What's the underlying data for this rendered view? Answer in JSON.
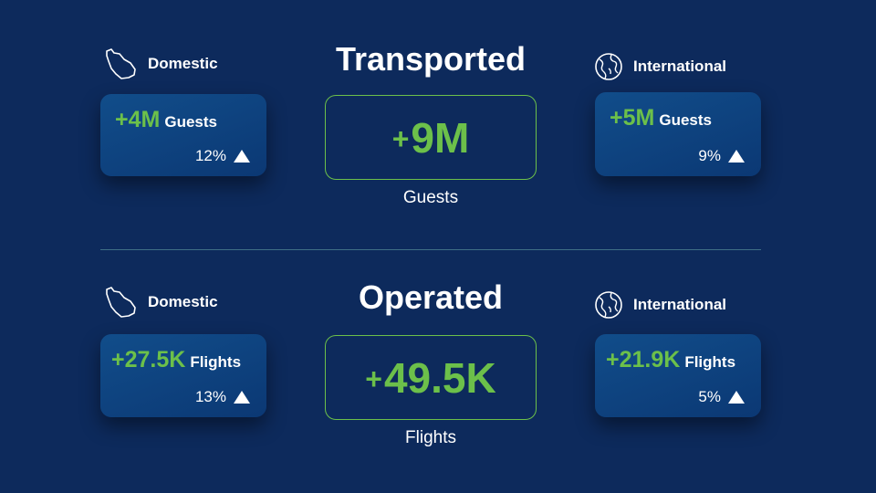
{
  "colors": {
    "background": "#0d2a5c",
    "accent_green": "#6cc04a",
    "card": "#0f4280",
    "divider": "#3f6f86"
  },
  "transported": {
    "heading": "Transported",
    "total": {
      "plus": "+",
      "value": "9M",
      "caption": "Guests"
    },
    "domestic": {
      "label": "Domestic",
      "icon": "saudi-map-outline-icon",
      "value": "+4M",
      "unit": "Guests",
      "percent": "12%",
      "trend_icon": "triangle-up-icon"
    },
    "international": {
      "label": "International",
      "icon": "globe-icon",
      "value": "+5M",
      "unit": "Guests",
      "percent": "9%",
      "trend_icon": "triangle-up-icon"
    }
  },
  "operated": {
    "heading": "Operated",
    "total": {
      "plus": "+",
      "value": "49.5K",
      "caption": "Flights"
    },
    "domestic": {
      "label": "Domestic",
      "icon": "saudi-map-outline-icon",
      "value": "+27.5K",
      "unit": "Flights",
      "percent": "13%",
      "trend_icon": "triangle-up-icon"
    },
    "international": {
      "label": "International",
      "icon": "globe-icon",
      "value": "+21.9K",
      "unit": "Flights",
      "percent": "5%",
      "trend_icon": "triangle-up-icon"
    }
  }
}
